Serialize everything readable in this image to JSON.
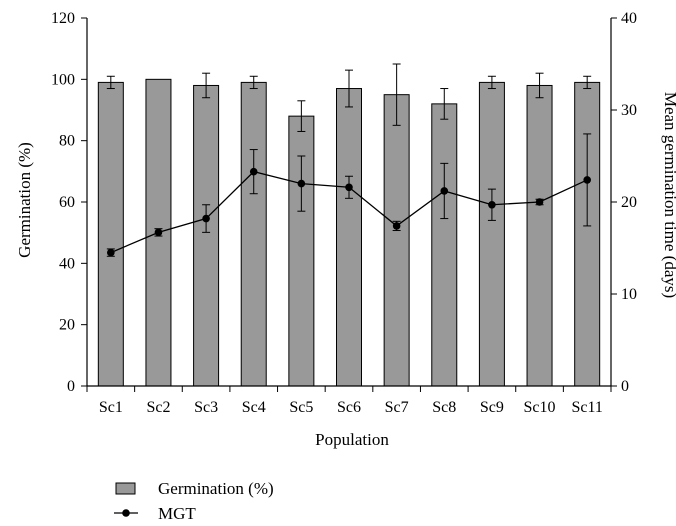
{
  "chart_data": {
    "type": "bar",
    "categories": [
      "Sc1",
      "Sc2",
      "Sc3",
      "Sc4",
      "Sc5",
      "Sc6",
      "Sc7",
      "Sc8",
      "Sc9",
      "Sc10",
      "Sc11"
    ],
    "series": [
      {
        "name": "Germination (%)",
        "type": "bar",
        "axis": "left",
        "values": [
          99,
          100,
          98,
          99,
          88,
          97,
          95,
          92,
          99,
          98,
          99
        ],
        "errors": [
          2,
          0,
          4,
          2,
          5,
          6,
          10,
          5,
          2,
          4,
          2
        ]
      },
      {
        "name": "MGT",
        "type": "line",
        "axis": "right",
        "values": [
          14.5,
          16.7,
          18.2,
          23.3,
          22.0,
          21.6,
          17.4,
          21.2,
          19.7,
          20.0,
          22.4
        ],
        "errors": [
          0.4,
          0.4,
          1.5,
          2.4,
          3.0,
          1.2,
          0.5,
          3.0,
          1.7,
          0.3,
          5.0
        ]
      }
    ],
    "xlabel": "Population",
    "ylabel": "Germination (%)",
    "y2label": "Mean germination time (days)",
    "ylim": [
      0,
      120
    ],
    "y2lim": [
      0,
      40
    ],
    "yticks": [
      0,
      20,
      40,
      60,
      80,
      100,
      120
    ],
    "y2ticks": [
      0,
      10,
      20,
      30,
      40
    ],
    "legend_position": "bottom-left",
    "bar_color": "#999999",
    "grid": false
  },
  "legend": {
    "bar_label": "Germination (%)",
    "line_label": "MGT"
  }
}
